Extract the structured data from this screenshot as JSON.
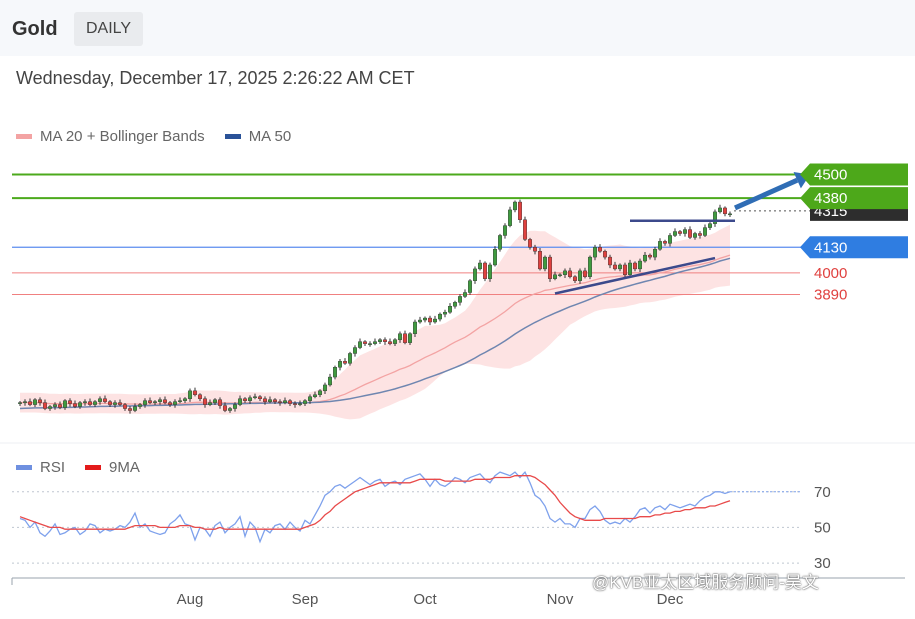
{
  "header": {
    "title": "Gold",
    "timeframe": "DAILY"
  },
  "datetime": "Wednesday, December 17, 2025 2:26:22 AM CET",
  "colors": {
    "up": "#3f9b3f",
    "down": "#e0413f",
    "band": "#fcd9d9",
    "ma20": "#f3a3a3",
    "ma50": "#6f86b0",
    "support": "#f08080",
    "resistance": "#4caa1c",
    "ma50line": "#5b8def",
    "current": "#2d2d2d",
    "trend": "#3c4a8c",
    "rsi": "#7ea1ec",
    "ma9": "#e84a4a",
    "arrow": "#2f6db5"
  },
  "main_legend": [
    {
      "label": "MA 20 + Bollinger Bands",
      "color": "#f3a3a3"
    },
    {
      "label": "MA 50",
      "color": "#2a5298"
    }
  ],
  "rsi_legend": [
    {
      "label": "RSI",
      "color": "#6f90e0"
    },
    {
      "label": "9MA",
      "color": "#e31b1b"
    }
  ],
  "watermark": "@KVB亚太区域服务顾问-吴文",
  "chart_data": [
    {
      "type": "candlestick",
      "title": "Gold",
      "ylim": [
        3150,
        4650
      ],
      "x_tick_labels": [
        "Aug",
        "Sep",
        "Oct",
        "Nov",
        "Dec"
      ],
      "levels": [
        {
          "label": "4500",
          "value": 4500,
          "kind": "resistance"
        },
        {
          "label": "4380",
          "value": 4380,
          "kind": "resistance"
        },
        {
          "label": "4315",
          "value": 4315,
          "kind": "current"
        },
        {
          "label": "4130",
          "value": 4130,
          "kind": "ma50"
        },
        {
          "label": "4000",
          "value": 4000,
          "kind": "support"
        },
        {
          "label": "3890",
          "value": 3890,
          "kind": "support"
        }
      ],
      "close": [
        3340,
        3345,
        3330,
        3355,
        3340,
        3310,
        3320,
        3330,
        3315,
        3350,
        3335,
        3320,
        3340,
        3345,
        3330,
        3345,
        3360,
        3345,
        3330,
        3340,
        3330,
        3310,
        3300,
        3320,
        3330,
        3350,
        3340,
        3345,
        3355,
        3340,
        3330,
        3345,
        3350,
        3360,
        3400,
        3380,
        3360,
        3330,
        3340,
        3355,
        3325,
        3300,
        3310,
        3330,
        3360,
        3350,
        3365,
        3370,
        3360,
        3345,
        3355,
        3345,
        3340,
        3350,
        3335,
        3330,
        3335,
        3350,
        3370,
        3380,
        3400,
        3430,
        3470,
        3520,
        3550,
        3540,
        3590,
        3620,
        3650,
        3640,
        3640,
        3650,
        3660,
        3650,
        3640,
        3660,
        3690,
        3645,
        3690,
        3750,
        3760,
        3770,
        3750,
        3765,
        3790,
        3800,
        3830,
        3850,
        3880,
        3900,
        3960,
        4020,
        4050,
        3970,
        4040,
        4120,
        4190,
        4240,
        4320,
        4360,
        4270,
        4170,
        4130,
        4110,
        4020,
        4080,
        3970,
        3990,
        3990,
        4010,
        3980,
        3960,
        4010,
        3980,
        4080,
        4130,
        4110,
        4080,
        4040,
        4020,
        4040,
        3990,
        4050,
        4020,
        4060,
        4090,
        4080,
        4120,
        4160,
        4150,
        4190,
        4210,
        4200,
        4220,
        4180,
        4200,
        4190,
        4230,
        4250,
        4310,
        4330,
        4300,
        4300
      ],
      "ma20": [
        3340,
        3340,
        3340,
        3340,
        3339,
        3337,
        3335,
        3335,
        3334,
        3335,
        3335,
        3334,
        3334,
        3335,
        3335,
        3335,
        3336,
        3336,
        3335,
        3335,
        3335,
        3334,
        3333,
        3333,
        3332,
        3333,
        3333,
        3333,
        3334,
        3334,
        3334,
        3334,
        3335,
        3336,
        3339,
        3341,
        3342,
        3341,
        3341,
        3342,
        3341,
        3339,
        3338,
        3338,
        3339,
        3339,
        3340,
        3341,
        3341,
        3341,
        3342,
        3342,
        3341,
        3341,
        3341,
        3340,
        3340,
        3340,
        3341,
        3343,
        3346,
        3350,
        3356,
        3364,
        3374,
        3383,
        3395,
        3407,
        3420,
        3432,
        3443,
        3454,
        3466,
        3477,
        3487,
        3498,
        3510,
        3518,
        3529,
        3543,
        3556,
        3570,
        3581,
        3593,
        3606,
        3619,
        3634,
        3648,
        3660,
        3672,
        3688,
        3706,
        3724,
        3737,
        3752,
        3768,
        3785,
        3803,
        3823,
        3844,
        3860,
        3872,
        3883,
        3894,
        3901,
        3911,
        3915,
        3921,
        3926,
        3931,
        3936,
        3940,
        3946,
        3950,
        3957,
        3964,
        3971,
        3976,
        3979,
        3981,
        3984,
        3983,
        3984,
        3984,
        3986,
        3989,
        3990,
        3994,
        4000,
        4004,
        4011,
        4018,
        4023,
        4029,
        4033,
        4038,
        4042,
        4048,
        4054,
        4064,
        4074,
        4082,
        4090
      ],
      "ma50": [
        3310,
        3311,
        3312,
        3313,
        3313,
        3314,
        3314,
        3315,
        3315,
        3316,
        3316,
        3317,
        3318,
        3318,
        3319,
        3320,
        3321,
        3321,
        3322,
        3322,
        3323,
        3323,
        3323,
        3324,
        3324,
        3325,
        3325,
        3326,
        3326,
        3327,
        3327,
        3328,
        3328,
        3329,
        3330,
        3331,
        3331,
        3332,
        3332,
        3333,
        3333,
        3333,
        3334,
        3334,
        3335,
        3335,
        3336,
        3336,
        3337,
        3337,
        3338,
        3338,
        3338,
        3339,
        3339,
        3339,
        3339,
        3339,
        3340,
        3341,
        3342,
        3344,
        3346,
        3349,
        3352,
        3356,
        3360,
        3365,
        3370,
        3376,
        3381,
        3386,
        3391,
        3397,
        3403,
        3410,
        3418,
        3425,
        3433,
        3442,
        3451,
        3461,
        3470,
        3479,
        3488,
        3498,
        3508,
        3518,
        3529,
        3540,
        3553,
        3567,
        3582,
        3595,
        3609,
        3623,
        3638,
        3654,
        3671,
        3689,
        3705,
        3720,
        3734,
        3748,
        3760,
        3773,
        3784,
        3795,
        3806,
        3817,
        3828,
        3837,
        3846,
        3856,
        3866,
        3877,
        3887,
        3896,
        3905,
        3913,
        3921,
        3928,
        3935,
        3942,
        3949,
        3956,
        3962,
        3969,
        3976,
        3982,
        3990,
        3997,
        4004,
        4011,
        4017,
        4023,
        4029,
        4036,
        4043,
        4051,
        4060,
        4067,
        4074
      ],
      "bb_width": [
        50,
        50,
        50,
        50,
        50,
        50,
        50,
        50,
        50,
        50,
        50,
        50,
        50,
        50,
        50,
        50,
        50,
        50,
        50,
        50,
        50,
        50,
        50,
        50,
        50,
        50,
        50,
        50,
        50,
        50,
        50,
        50,
        52,
        54,
        58,
        60,
        60,
        60,
        60,
        60,
        60,
        60,
        58,
        56,
        56,
        54,
        54,
        52,
        52,
        50,
        50,
        50,
        50,
        50,
        50,
        50,
        50,
        50,
        52,
        56,
        62,
        70,
        80,
        95,
        110,
        125,
        140,
        150,
        160,
        160,
        160,
        160,
        160,
        160,
        160,
        160,
        160,
        160,
        160,
        160,
        160,
        160,
        150,
        140,
        130,
        125,
        125,
        125,
        130,
        135,
        150,
        170,
        190,
        210,
        230,
        250,
        270,
        290,
        310,
        320,
        330,
        330,
        330,
        320,
        310,
        300,
        280,
        260,
        240,
        220,
        200,
        190,
        180,
        170,
        165,
        160,
        160,
        160,
        160,
        160,
        160,
        155,
        150,
        145,
        140,
        140,
        140,
        140,
        140,
        140,
        140,
        140,
        140,
        140,
        140,
        140,
        140,
        140,
        140,
        140,
        145,
        150,
        155
      ],
      "trendlines": [
        {
          "name": "horizontal resistance",
          "from": [
            122,
            4265
          ],
          "to": [
            143,
            4265
          ]
        },
        {
          "name": "rising support",
          "from": [
            107,
            3895
          ],
          "to": [
            139,
            4075
          ]
        }
      ],
      "arrow": {
        "from": [
          143,
          4330
        ],
        "to": [
          158,
          4500
        ]
      }
    },
    {
      "type": "line",
      "title": "RSI",
      "ylim": [
        25,
        85
      ],
      "y_ticks": [
        30,
        50,
        70
      ],
      "y_tick_labels": [
        "30",
        "50",
        "70"
      ],
      "series": [
        {
          "name": "RSI",
          "values": [
            55,
            54,
            50,
            53,
            47,
            45,
            48,
            52,
            46,
            47,
            49,
            50,
            46,
            48,
            52,
            51,
            47,
            49,
            48,
            49,
            51,
            50,
            53,
            58,
            50,
            52,
            48,
            47,
            46,
            47,
            52,
            54,
            57,
            52,
            51,
            43,
            50,
            49,
            45,
            51,
            53,
            47,
            50,
            52,
            56,
            45,
            53,
            50,
            42,
            49,
            47,
            51,
            52,
            49,
            53,
            50,
            48,
            54,
            52,
            57,
            62,
            68,
            70,
            73,
            74,
            72,
            74,
            76,
            78,
            76,
            74,
            76,
            77,
            73,
            75,
            76,
            74,
            77,
            78,
            79,
            80,
            77,
            73,
            77,
            74,
            73,
            75,
            78,
            77,
            75,
            78,
            79,
            80,
            77,
            75,
            79,
            81,
            80,
            79,
            81,
            78,
            81,
            75,
            68,
            66,
            62,
            55,
            53,
            55,
            52,
            52,
            50,
            55,
            55,
            60,
            62,
            59,
            54,
            52,
            53,
            52,
            55,
            53,
            56,
            60,
            61,
            58,
            61,
            62,
            60,
            63,
            62,
            61,
            62,
            63,
            62,
            65,
            67,
            68,
            70,
            70,
            69,
            70
          ]
        },
        {
          "name": "9MA",
          "values": [
            56,
            55,
            54,
            53,
            52,
            51,
            50,
            50,
            50,
            49,
            49,
            49,
            49,
            49,
            49,
            49,
            49,
            49,
            49,
            49,
            49,
            49,
            50,
            51,
            51,
            51,
            51,
            51,
            50,
            50,
            50,
            50,
            51,
            51,
            51,
            50,
            50,
            49,
            49,
            49,
            50,
            49,
            49,
            49,
            49,
            49,
            49,
            49,
            49,
            49,
            49,
            49,
            49,
            49,
            49,
            49,
            49,
            50,
            51,
            52,
            54,
            57,
            59,
            62,
            64,
            66,
            68,
            70,
            71,
            72,
            73,
            74,
            75,
            75,
            75,
            75,
            75,
            75,
            75,
            76,
            77,
            77,
            77,
            77,
            77,
            76,
            76,
            76,
            76,
            76,
            76,
            77,
            77,
            77,
            77,
            78,
            78,
            78,
            78,
            79,
            79,
            79,
            79,
            78,
            76,
            74,
            71,
            68,
            64,
            61,
            58,
            56,
            55,
            54,
            54,
            54,
            54,
            55,
            55,
            55,
            55,
            55,
            55,
            55,
            56,
            56,
            56,
            57,
            57,
            58,
            58,
            59,
            59,
            60,
            60,
            61,
            61,
            61,
            62,
            62,
            63,
            64,
            65
          ]
        }
      ]
    }
  ]
}
